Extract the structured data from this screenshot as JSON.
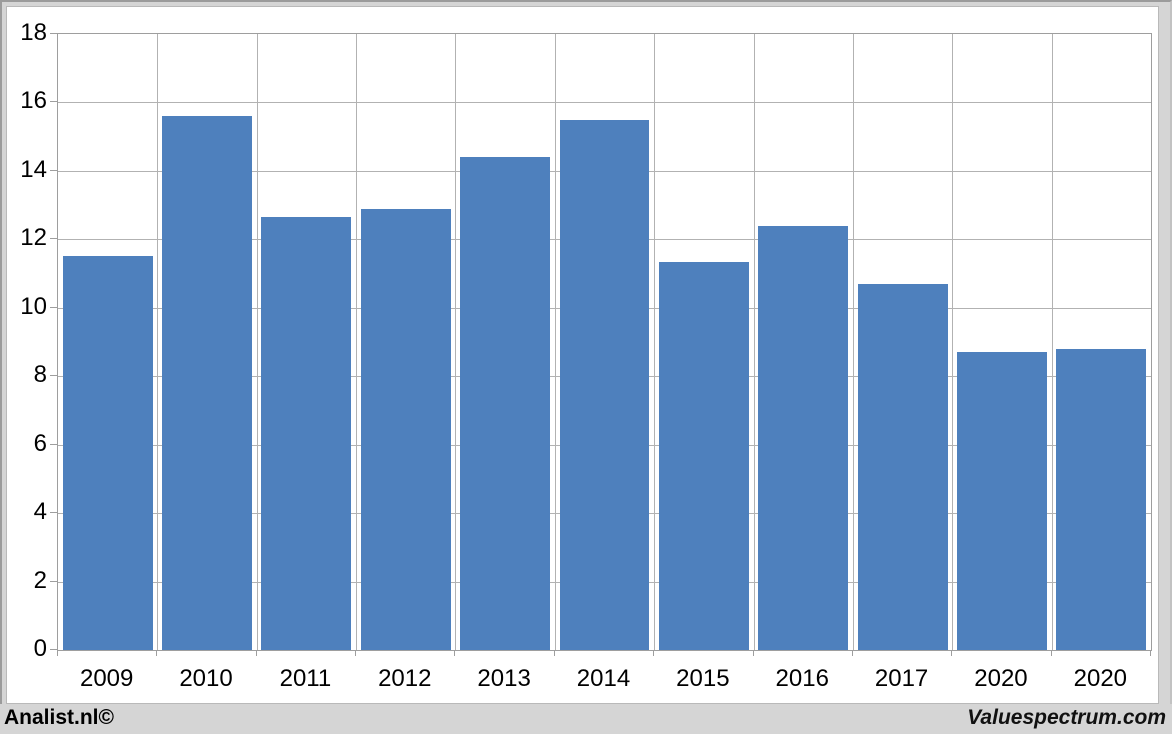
{
  "chart_data": {
    "type": "bar",
    "categories": [
      "2009",
      "2010",
      "2011",
      "2012",
      "2013",
      "2014",
      "2015",
      "2016",
      "2017",
      "2020",
      "2020"
    ],
    "values": [
      11.5,
      15.6,
      12.65,
      12.9,
      14.4,
      15.5,
      11.35,
      12.4,
      10.7,
      8.7,
      8.8
    ],
    "title": "",
    "xlabel": "",
    "ylabel": "",
    "ylim": [
      0,
      18
    ],
    "ytick_step": 2,
    "ytick_labels": [
      "0",
      "2",
      "4",
      "6",
      "8",
      "10",
      "12",
      "14",
      "16",
      "18"
    ],
    "grid": true,
    "legend": null,
    "bar_color": "#4e80bd",
    "plot_bg": "#ffffff",
    "gridline_color": "#b2b2b2"
  },
  "footer": {
    "left": "Analist.nl©",
    "right": "Valuespectrum.com"
  },
  "colors": {
    "page_bg": "#d5d5d5",
    "chart_bg": "#ffffff",
    "bar": "#4e80bd",
    "axis": "#9e9e9e",
    "text": "#000000"
  }
}
